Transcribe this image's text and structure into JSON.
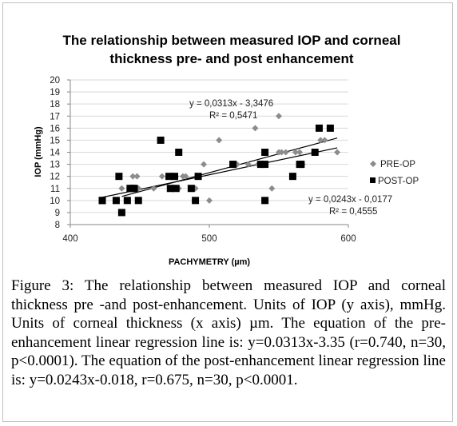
{
  "caption": {
    "label": "Figure 3:",
    "text": "The relationship between measured IOP and corneal thickness pre -and post-enhancement. Units of IOP (y axis), mmHg. Units of corneal thickness (x axis) µm. The equation of the pre-enhancement linear regression line is: y=0.0313x-3.35 (r=0.740, n=30, p<0.0001). The equation of the post-enhancement linear regression line is: y=0.0243x-0.018, r=0.675, n=30, p<0.0001."
  },
  "chart_data": {
    "type": "scatter",
    "title_lines": [
      "The relationship between measured IOP and corneal",
      "thickness pre- and post enhancement"
    ],
    "xlabel": "PACHYMETRY (µm)",
    "ylabel": "IOP (mmHg)",
    "xlim": [
      400,
      600
    ],
    "ylim": [
      8,
      20
    ],
    "x_ticks": [
      400,
      500,
      600
    ],
    "y_ticks": [
      8,
      9,
      10,
      11,
      12,
      13,
      14,
      15,
      16,
      17,
      18,
      19,
      20
    ],
    "grid": "horizontal",
    "legend_position": "right",
    "series": [
      {
        "name": "PRE-OP",
        "marker": "diamond",
        "color": "#8c8c8c",
        "points": [
          [
            437,
            11
          ],
          [
            445,
            12
          ],
          [
            448,
            12
          ],
          [
            449,
            11
          ],
          [
            460,
            11
          ],
          [
            466,
            12
          ],
          [
            476,
            12
          ],
          [
            478,
            11
          ],
          [
            481,
            12
          ],
          [
            483,
            12
          ],
          [
            488,
            11
          ],
          [
            490,
            11
          ],
          [
            496,
            13
          ],
          [
            500,
            10
          ],
          [
            507,
            15
          ],
          [
            520,
            13
          ],
          [
            528,
            13
          ],
          [
            533,
            16
          ],
          [
            535,
            13
          ],
          [
            545,
            11
          ],
          [
            550,
            14
          ],
          [
            552,
            14
          ],
          [
            550,
            17
          ],
          [
            555,
            14
          ],
          [
            562,
            14
          ],
          [
            565,
            14
          ],
          [
            567,
            13
          ],
          [
            580,
            15
          ],
          [
            583,
            15
          ],
          [
            592,
            14
          ]
        ],
        "trendline": {
          "slope": 0.0313,
          "intercept": -3.3476,
          "x_range": [
            437,
            592
          ]
        },
        "equation": "y = 0,0313x - 3,3476",
        "r2": "R² = 0,5471"
      },
      {
        "name": "POST-OP",
        "marker": "square",
        "color": "#000000",
        "points": [
          [
            423,
            10
          ],
          [
            433,
            10
          ],
          [
            435,
            12
          ],
          [
            437,
            9
          ],
          [
            441,
            10
          ],
          [
            443,
            11
          ],
          [
            446,
            11
          ],
          [
            449,
            10
          ],
          [
            465,
            15
          ],
          [
            471,
            12
          ],
          [
            472,
            11
          ],
          [
            475,
            12
          ],
          [
            476,
            11
          ],
          [
            478,
            14
          ],
          [
            487,
            11
          ],
          [
            490,
            10
          ],
          [
            492,
            12
          ],
          [
            517,
            13
          ],
          [
            537,
            13
          ],
          [
            540,
            13
          ],
          [
            540,
            14
          ],
          [
            540,
            10
          ],
          [
            560,
            12
          ],
          [
            565,
            13
          ],
          [
            566,
            13
          ],
          [
            576,
            14
          ],
          [
            579,
            16
          ],
          [
            587,
            16
          ],
          [
            423,
            10
          ],
          [
            445,
            11
          ]
        ],
        "trendline": {
          "slope": 0.0243,
          "intercept": -0.0177,
          "x_range": [
            423,
            592
          ]
        },
        "equation": "y = 0,0243x - 0,0177",
        "r2": "R² = 0,4555"
      }
    ]
  }
}
